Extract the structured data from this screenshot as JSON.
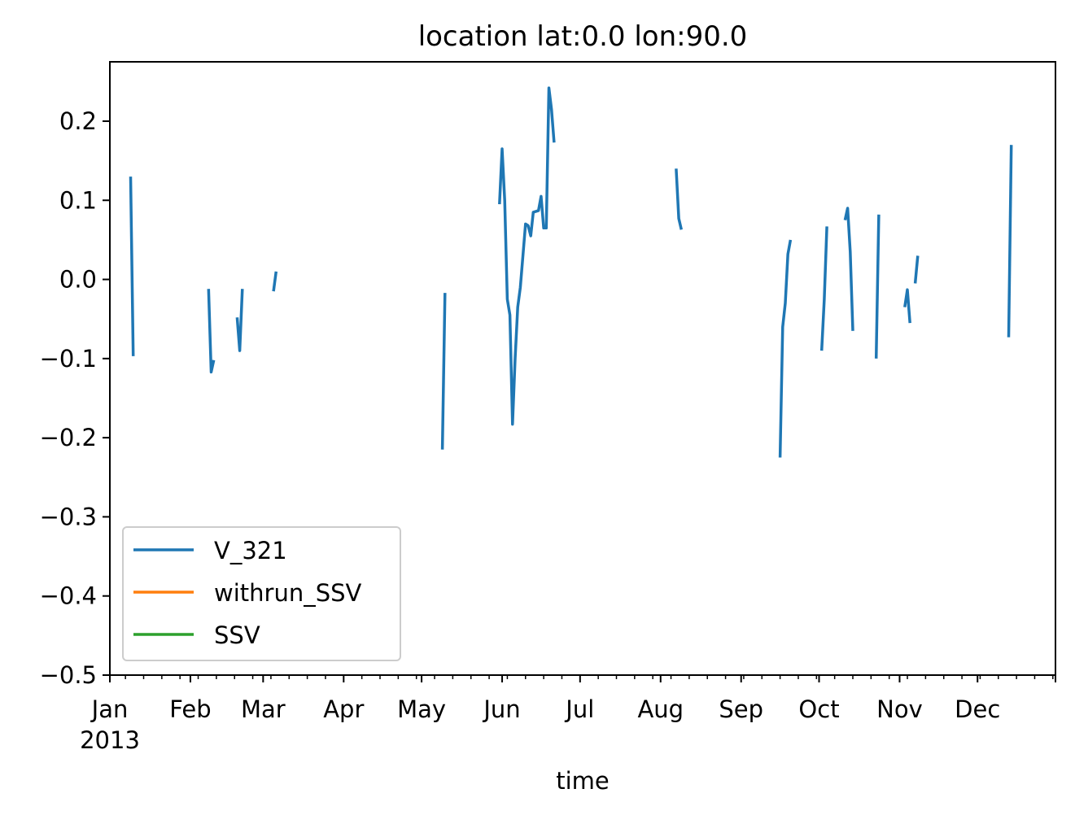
{
  "chart_data": {
    "type": "line",
    "title": "location lat:0.0 lon:90.0",
    "xlabel": "time",
    "ylabel": "",
    "xlim": [
      "2013-01-01",
      "2013-12-31"
    ],
    "ylim": [
      -0.5,
      0.275
    ],
    "grid": false,
    "legend_position": "lower-left",
    "x_ticks": [
      {
        "date": "2013-01-01",
        "label": "Jan",
        "sublabel": "2013"
      },
      {
        "date": "2013-02-01",
        "label": "Feb"
      },
      {
        "date": "2013-03-01",
        "label": "Mar"
      },
      {
        "date": "2013-04-01",
        "label": "Apr"
      },
      {
        "date": "2013-05-01",
        "label": "May"
      },
      {
        "date": "2013-06-01",
        "label": "Jun"
      },
      {
        "date": "2013-07-01",
        "label": "Jul"
      },
      {
        "date": "2013-08-01",
        "label": "Aug"
      },
      {
        "date": "2013-09-01",
        "label": "Sep"
      },
      {
        "date": "2013-10-01",
        "label": "Oct"
      },
      {
        "date": "2013-11-01",
        "label": "Nov"
      },
      {
        "date": "2013-12-01",
        "label": "Dec"
      }
    ],
    "y_ticks": [
      {
        "value": 0.2,
        "label": "0.2"
      },
      {
        "value": 0.1,
        "label": "0.1"
      },
      {
        "value": 0.0,
        "label": "0.0"
      },
      {
        "value": -0.1,
        "label": "−0.1"
      },
      {
        "value": -0.2,
        "label": "−0.2"
      },
      {
        "value": -0.3,
        "label": "−0.3"
      },
      {
        "value": -0.4,
        "label": "−0.4"
      },
      {
        "value": -0.5,
        "label": "−0.5"
      }
    ],
    "series": [
      {
        "name": "V_321",
        "color": "#1f77b4",
        "segments": [
          [
            [
              "2013-01-09",
              0.13
            ],
            [
              "2013-01-10",
              -0.097
            ]
          ],
          [
            [
              "2013-02-08",
              -0.012
            ],
            [
              "2013-02-09",
              -0.117
            ],
            [
              "2013-02-10",
              -0.102
            ]
          ],
          [
            [
              "2013-02-19",
              -0.048
            ],
            [
              "2013-02-20",
              -0.09
            ],
            [
              "2013-02-21",
              -0.012
            ]
          ],
          [
            [
              "2013-03-05",
              -0.015
            ],
            [
              "2013-03-06",
              0.01
            ]
          ],
          [
            [
              "2013-05-09",
              -0.215
            ],
            [
              "2013-05-10",
              -0.017
            ]
          ],
          [
            [
              "2013-05-31",
              0.095
            ],
            [
              "2013-06-01",
              0.165
            ],
            [
              "2013-06-02",
              0.1
            ],
            [
              "2013-06-03",
              -0.025
            ],
            [
              "2013-06-04",
              -0.045
            ],
            [
              "2013-06-05",
              -0.183
            ],
            [
              "2013-06-06",
              -0.1
            ],
            [
              "2013-06-07",
              -0.035
            ],
            [
              "2013-06-08",
              -0.01
            ],
            [
              "2013-06-10",
              0.07
            ],
            [
              "2013-06-11",
              0.068
            ],
            [
              "2013-06-12",
              0.055
            ],
            [
              "2013-06-13",
              0.085
            ],
            [
              "2013-06-15",
              0.087
            ],
            [
              "2013-06-16",
              0.105
            ],
            [
              "2013-06-17",
              0.065
            ],
            [
              "2013-06-18",
              0.065
            ],
            [
              "2013-06-19",
              0.242
            ],
            [
              "2013-06-20",
              0.215
            ],
            [
              "2013-06-21",
              0.173
            ]
          ],
          [
            [
              "2013-08-07",
              0.14
            ],
            [
              "2013-08-08",
              0.077
            ],
            [
              "2013-08-09",
              0.063
            ]
          ],
          [
            [
              "2013-09-16",
              -0.225
            ],
            [
              "2013-09-17",
              -0.06
            ],
            [
              "2013-09-18",
              -0.03
            ],
            [
              "2013-09-19",
              0.032
            ],
            [
              "2013-09-20",
              0.05
            ]
          ],
          [
            [
              "2013-10-02",
              -0.09
            ],
            [
              "2013-10-03",
              -0.025
            ],
            [
              "2013-10-04",
              0.067
            ]
          ],
          [
            [
              "2013-10-11",
              0.075
            ],
            [
              "2013-10-12",
              0.09
            ],
            [
              "2013-10-13",
              0.035
            ],
            [
              "2013-10-14",
              -0.065
            ]
          ],
          [
            [
              "2013-10-23",
              -0.1
            ],
            [
              "2013-10-24",
              0.082
            ]
          ],
          [
            [
              "2013-11-03",
              -0.035
            ],
            [
              "2013-11-04",
              -0.013
            ],
            [
              "2013-11-05",
              -0.055
            ]
          ],
          [
            [
              "2013-11-07",
              -0.005
            ],
            [
              "2013-11-08",
              0.03
            ]
          ],
          [
            [
              "2013-12-13",
              -0.073
            ],
            [
              "2013-12-14",
              0.17
            ]
          ]
        ]
      },
      {
        "name": "withrun_SSV",
        "color": "#ff7f0e",
        "segments": []
      },
      {
        "name": "SSV",
        "color": "#2ca02c",
        "segments": []
      }
    ]
  }
}
